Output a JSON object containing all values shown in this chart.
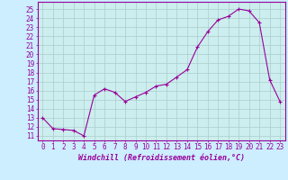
{
  "x": [
    0,
    1,
    2,
    3,
    4,
    5,
    6,
    7,
    8,
    9,
    10,
    11,
    12,
    13,
    14,
    15,
    16,
    17,
    18,
    19,
    20,
    21,
    22,
    23
  ],
  "y": [
    13.0,
    11.8,
    11.7,
    11.6,
    11.0,
    15.5,
    16.2,
    15.8,
    14.8,
    15.3,
    15.8,
    16.5,
    16.7,
    17.5,
    18.3,
    20.8,
    22.5,
    23.8,
    24.2,
    25.0,
    24.8,
    23.5,
    17.2,
    14.8
  ],
  "line_color": "#990099",
  "marker": "+",
  "markersize": 3.5,
  "linewidth": 0.8,
  "markeredgewidth": 0.8,
  "xlabel": "Windchill (Refroidissement éolien,°C)",
  "xlabel_fontsize": 6.0,
  "xtick_labels": [
    "0",
    "1",
    "2",
    "3",
    "4",
    "5",
    "6",
    "7",
    "8",
    "9",
    "10",
    "11",
    "12",
    "13",
    "14",
    "15",
    "16",
    "17",
    "18",
    "19",
    "20",
    "21",
    "22",
    "23"
  ],
  "ytick_min": 11,
  "ytick_max": 25,
  "ytick_step": 1,
  "ylim": [
    10.5,
    25.8
  ],
  "xlim": [
    -0.5,
    23.5
  ],
  "background_color": "#cceeff",
  "plot_bg_color": "#cceeee",
  "grid_color": "#aacccc",
  "tick_color": "#990099",
  "tick_fontsize": 5.5,
  "tick_label_color": "#990099",
  "spine_color": "#990099"
}
